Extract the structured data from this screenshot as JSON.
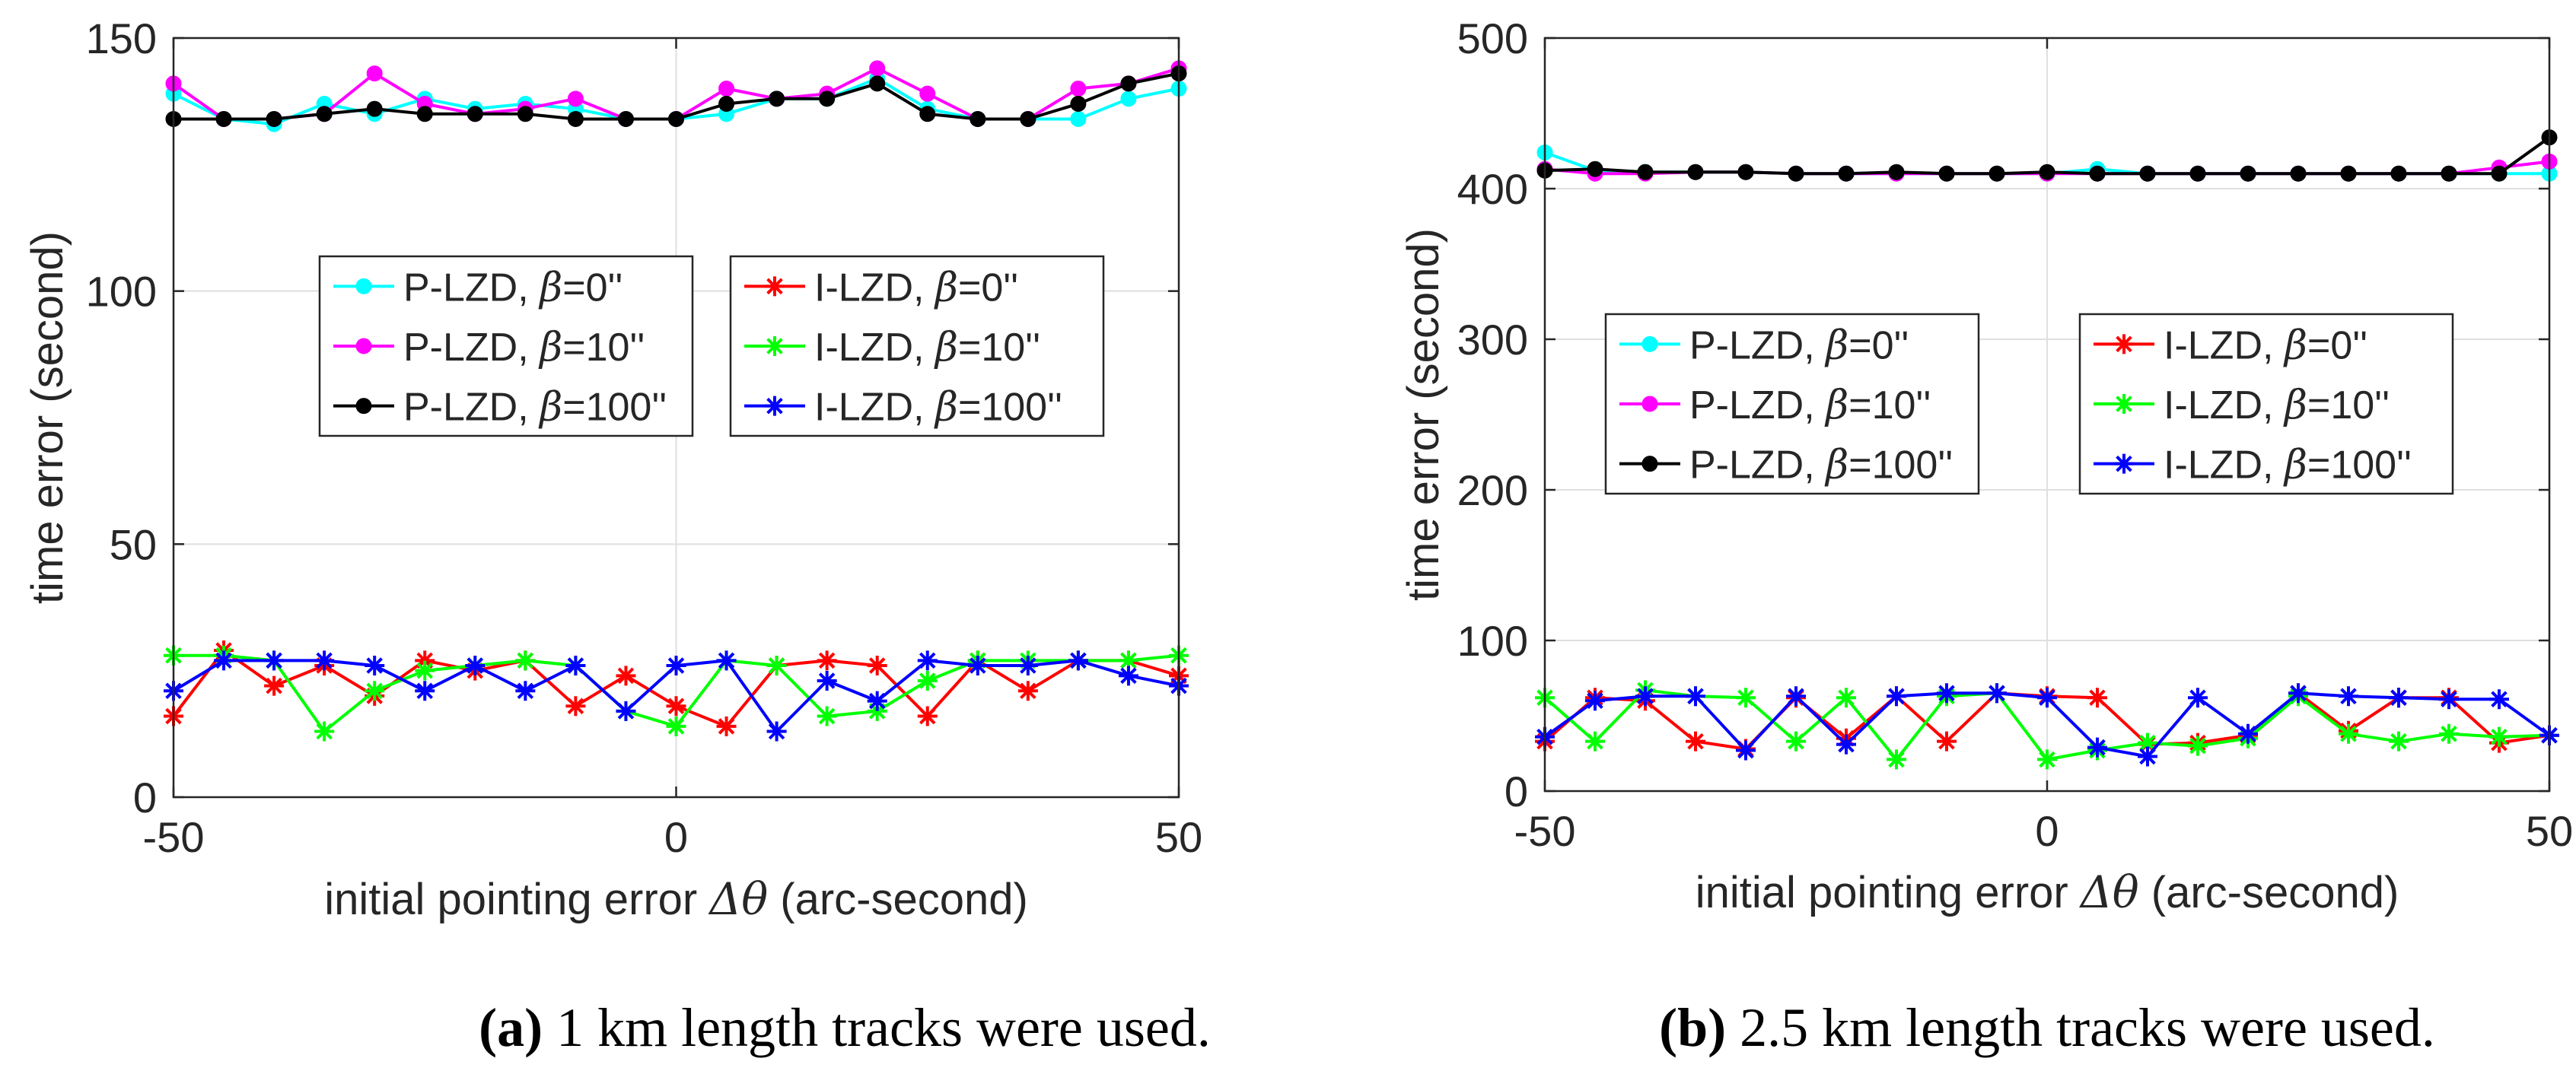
{
  "chart_data": [
    {
      "type": "line",
      "xlabel_prefix": "initial pointing error ",
      "xlabel_symbol": "Δθ",
      "xlabel_suffix": " (arc-second)",
      "ylabel": "time error (second)",
      "xlim": [
        -50,
        50
      ],
      "ylim": [
        0,
        150
      ],
      "xticks": [
        -50,
        0,
        50
      ],
      "yticks": [
        0,
        50,
        100,
        150
      ],
      "grid": true,
      "x": [
        -50,
        -45,
        -40,
        -35,
        -30,
        -25,
        -20,
        -15,
        -10,
        -5,
        0,
        5,
        10,
        15,
        20,
        25,
        30,
        35,
        40,
        45,
        50
      ],
      "series": [
        {
          "name": "P-LZD",
          "beta": "0''",
          "color": "#00ffff",
          "marker": "dot",
          "values": [
            139,
            134,
            133,
            137,
            135,
            138,
            136,
            137,
            136,
            134,
            134,
            135,
            138,
            138,
            142,
            136,
            134,
            134,
            134,
            138,
            140
          ]
        },
        {
          "name": "P-LZD",
          "beta": "10''",
          "color": "#ff00ff",
          "marker": "dot",
          "values": [
            141,
            134,
            134,
            135,
            143,
            137,
            135,
            136,
            138,
            134,
            134,
            140,
            138,
            139,
            144,
            139,
            134,
            134,
            140,
            141,
            144
          ]
        },
        {
          "name": "P-LZD",
          "beta": "100''",
          "color": "#000000",
          "marker": "dot",
          "values": [
            134,
            134,
            134,
            135,
            136,
            135,
            135,
            135,
            134,
            134,
            134,
            137,
            138,
            138,
            141,
            135,
            134,
            134,
            137,
            141,
            143
          ]
        },
        {
          "name": "I-LZD",
          "beta": "0''",
          "color": "#ff0000",
          "marker": "star",
          "values": [
            16,
            29,
            22,
            26,
            20,
            27,
            25,
            27,
            18,
            24,
            18,
            14,
            26,
            27,
            26,
            16,
            27,
            21,
            27,
            27,
            24
          ]
        },
        {
          "name": "I-LZD",
          "beta": "10''",
          "color": "#00ff00",
          "marker": "star",
          "values": [
            28,
            28,
            27,
            13,
            21,
            25,
            26,
            27,
            26,
            17,
            14,
            27,
            26,
            16,
            17,
            23,
            27,
            27,
            27,
            27,
            28
          ]
        },
        {
          "name": "I-LZD",
          "beta": "100''",
          "color": "#0000ff",
          "marker": "star",
          "values": [
            21,
            27,
            27,
            27,
            26,
            21,
            26,
            21,
            26,
            17,
            26,
            27,
            13,
            23,
            19,
            27,
            26,
            26,
            27,
            24,
            22
          ]
        }
      ],
      "caption": {
        "label": "(a)",
        "text": " 1 km length tracks were used."
      }
    },
    {
      "type": "line",
      "xlabel_prefix": "initial pointing error ",
      "xlabel_symbol": "Δθ",
      "xlabel_suffix": " (arc-second)",
      "ylabel": "time error (second)",
      "xlim": [
        -50,
        50
      ],
      "ylim": [
        0,
        500
      ],
      "xticks": [
        -50,
        0,
        50
      ],
      "yticks": [
        0,
        100,
        200,
        300,
        400,
        500
      ],
      "grid": true,
      "x": [
        -50,
        -45,
        -40,
        -35,
        -30,
        -25,
        -20,
        -15,
        -10,
        -5,
        0,
        5,
        10,
        15,
        20,
        25,
        30,
        35,
        40,
        45,
        50
      ],
      "series": [
        {
          "name": "P-LZD",
          "beta": "0''",
          "color": "#00ffff",
          "marker": "dot",
          "values": [
            424,
            412,
            411,
            411,
            411,
            410,
            410,
            410,
            410,
            410,
            410,
            413,
            410,
            410,
            410,
            410,
            410,
            410,
            410,
            410,
            410
          ]
        },
        {
          "name": "P-LZD",
          "beta": "10''",
          "color": "#ff00ff",
          "marker": "dot",
          "values": [
            413,
            410,
            410,
            411,
            411,
            410,
            410,
            410,
            410,
            410,
            410,
            410,
            410,
            410,
            410,
            410,
            410,
            410,
            410,
            414,
            418
          ]
        },
        {
          "name": "P-LZD",
          "beta": "100''",
          "color": "#000000",
          "marker": "dot",
          "values": [
            412,
            413,
            411,
            411,
            411,
            410,
            410,
            411,
            410,
            410,
            411,
            410,
            410,
            410,
            410,
            410,
            410,
            410,
            410,
            410,
            434
          ]
        },
        {
          "name": "I-LZD",
          "beta": "0''",
          "color": "#ff0000",
          "marker": "star",
          "values": [
            33,
            62,
            60,
            33,
            28,
            62,
            35,
            63,
            33,
            65,
            63,
            62,
            31,
            32,
            37,
            65,
            40,
            62,
            62,
            32,
            37
          ]
        },
        {
          "name": "I-LZD",
          "beta": "10''",
          "color": "#00ff00",
          "marker": "star",
          "values": [
            62,
            33,
            67,
            63,
            62,
            33,
            62,
            21,
            63,
            65,
            21,
            27,
            32,
            30,
            35,
            63,
            38,
            33,
            38,
            36,
            37
          ]
        },
        {
          "name": "I-LZD",
          "beta": "100''",
          "color": "#0000ff",
          "marker": "star",
          "values": [
            36,
            60,
            63,
            63,
            27,
            63,
            31,
            63,
            65,
            65,
            62,
            29,
            23,
            62,
            38,
            65,
            63,
            62,
            61,
            61,
            37
          ]
        }
      ],
      "caption": {
        "label": "(b)",
        "text": " 2.5 km length tracks were used."
      }
    }
  ],
  "legend_beta_symbol": "β"
}
